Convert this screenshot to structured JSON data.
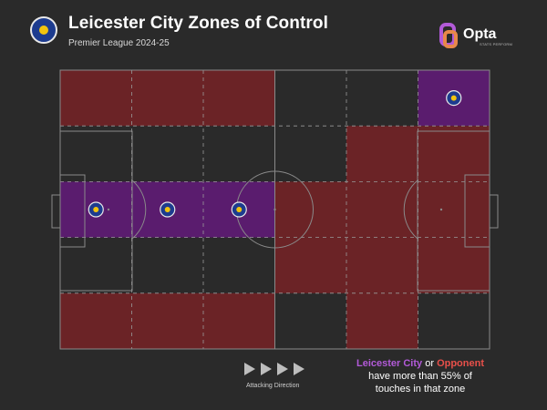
{
  "header": {
    "title": "Leicester City Zones of Control",
    "subtitle": "Premier League 2024-25",
    "logo_text": "Opta",
    "logo_subtext": "STATS PERFORM"
  },
  "legend": {
    "team": "Leicester City",
    "connector": "or",
    "opponent": "Opponent",
    "line2": "have more than 55% of",
    "line3": "touches in that zone"
  },
  "attacking_label": "Attacking Direction",
  "colors": {
    "background": "#2a2a2a",
    "team": "#5a1c6e",
    "opponent": "#6b2326",
    "team_text": "#b25ad8",
    "opponent_text": "#e8504a"
  },
  "icons": {
    "crest": "leicester-crest-icon",
    "logo": "opta-logo-icon",
    "arrow": "play-arrow-icon"
  },
  "chart_data": {
    "type": "heatmap",
    "title": "Leicester City Zones of Control",
    "subtitle": "Premier League 2024-25",
    "columns": 6,
    "rows": 5,
    "row_order": "top-to-bottom",
    "column_order": "left-to-right (attacking direction)",
    "values": [
      "opponent",
      "leicester",
      "none"
    ],
    "grid": [
      [
        "opponent",
        "opponent",
        "opponent",
        "none",
        "none",
        "leicester"
      ],
      [
        "none",
        "none",
        "none",
        "none",
        "opponent",
        "opponent"
      ],
      [
        "leicester",
        "leicester",
        "leicester",
        "opponent",
        "opponent",
        "opponent"
      ],
      [
        "none",
        "none",
        "none",
        "opponent",
        "opponent",
        "opponent"
      ],
      [
        "opponent",
        "opponent",
        "opponent",
        "none",
        "opponent",
        "none"
      ]
    ],
    "threshold_percent": 55
  }
}
